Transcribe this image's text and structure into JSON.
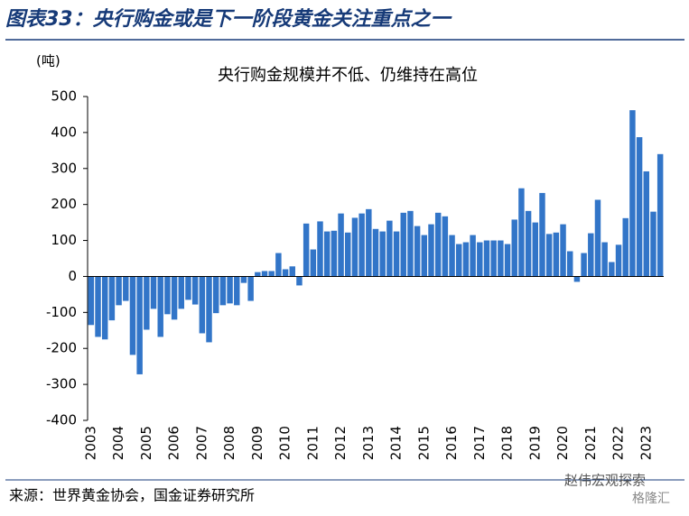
{
  "header": {
    "title": "图表33：央行购金或是下一阶段黄金关注重点之一"
  },
  "chart_data": {
    "type": "bar",
    "title": "央行购金规模并不低、仍维持在高位",
    "y_label": "(吨)",
    "categories": [
      "2003",
      null,
      null,
      null,
      "2004",
      null,
      null,
      null,
      "2005",
      null,
      null,
      null,
      "2006",
      null,
      null,
      null,
      "2007",
      null,
      null,
      null,
      "2008",
      null,
      null,
      null,
      "2009",
      null,
      null,
      null,
      "2010",
      null,
      null,
      null,
      "2011",
      null,
      null,
      null,
      "2012",
      null,
      null,
      null,
      "2013",
      null,
      null,
      null,
      "2014",
      null,
      null,
      null,
      "2015",
      null,
      null,
      null,
      "2016",
      null,
      null,
      null,
      "2017",
      null,
      null,
      null,
      "2018",
      null,
      null,
      null,
      "2019",
      null,
      null,
      null,
      "2020",
      null,
      null,
      null,
      "2021",
      null,
      null,
      null,
      "2022",
      null,
      null,
      null,
      "2023",
      null,
      null
    ],
    "values": [
      -135,
      -168,
      -175,
      -122,
      -80,
      -68,
      -218,
      -272,
      -148,
      -90,
      -168,
      -105,
      -120,
      -90,
      -65,
      -78,
      -158,
      -183,
      -102,
      -80,
      -75,
      -80,
      -18,
      -68,
      12,
      15,
      15,
      65,
      20,
      28,
      -25,
      147,
      75,
      153,
      125,
      127,
      175,
      122,
      163,
      175,
      187,
      132,
      125,
      155,
      125,
      177,
      182,
      140,
      115,
      145,
      177,
      167,
      115,
      90,
      95,
      115,
      95,
      100,
      100,
      100,
      90,
      158,
      245,
      182,
      150,
      232,
      118,
      122,
      145,
      70,
      -15,
      65,
      120,
      213,
      95,
      40,
      88,
      162,
      462,
      387,
      292,
      180,
      340
    ],
    "color": "#3275c8",
    "ylim": [
      -400,
      500
    ],
    "yticks": [
      -400,
      -300,
      -200,
      -100,
      0,
      100,
      200,
      300,
      400,
      500
    ]
  },
  "footer": {
    "source": "来源：世界黄金协会，国金证券研究所",
    "watermark": "赵伟宏观探索",
    "watermark2": "格隆汇"
  }
}
